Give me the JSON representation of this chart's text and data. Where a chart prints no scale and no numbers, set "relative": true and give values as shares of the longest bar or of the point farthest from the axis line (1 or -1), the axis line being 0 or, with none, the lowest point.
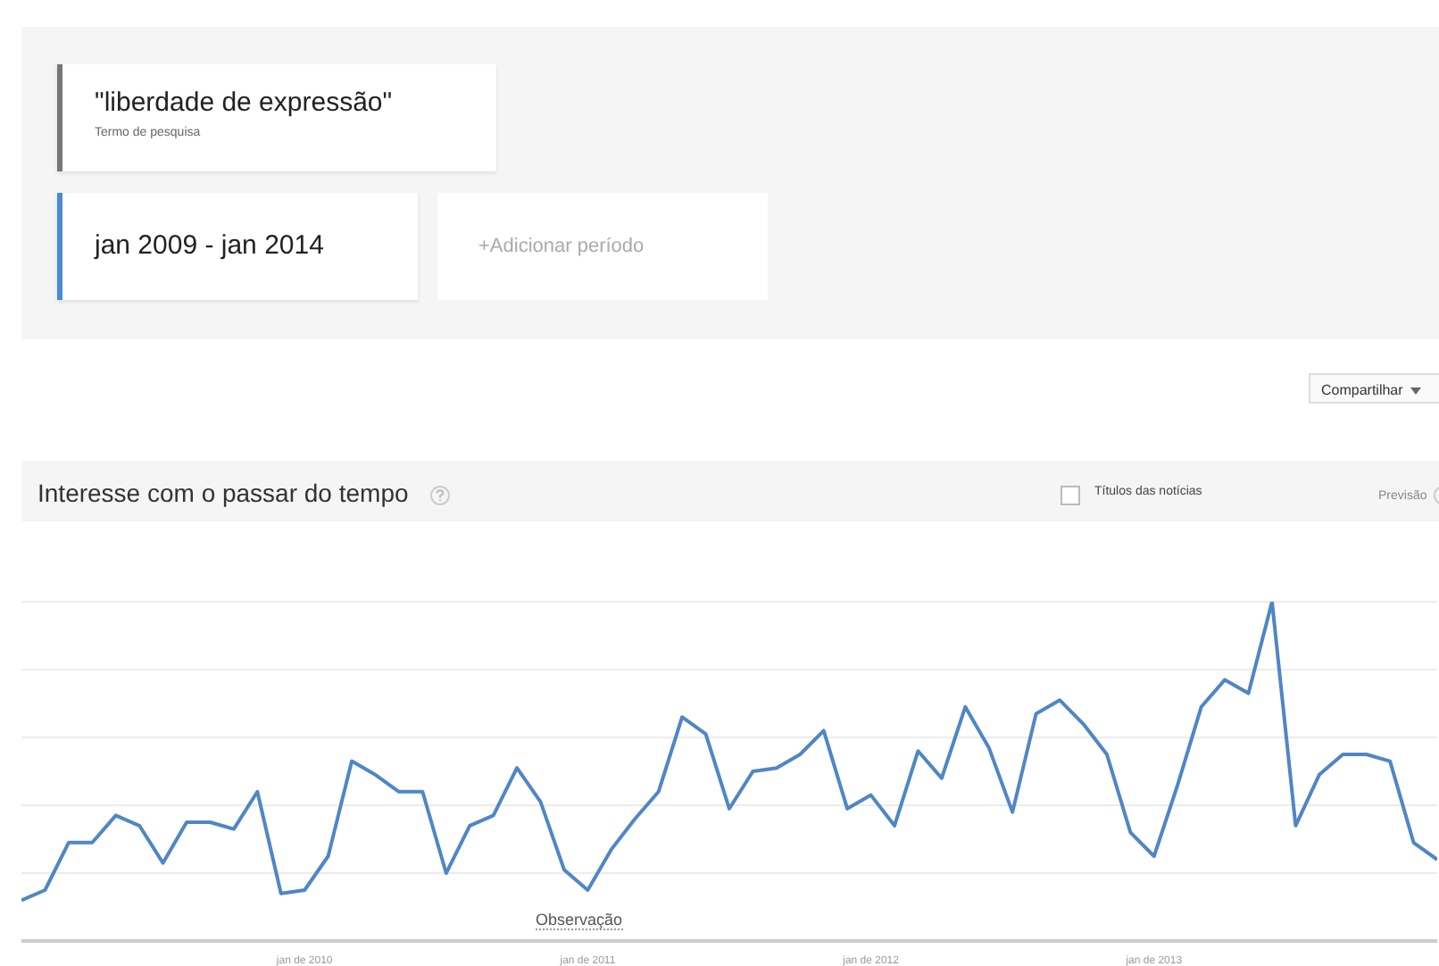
{
  "chart_data": {
    "type": "line",
    "title": "Interesse com o passar do tempo",
    "annotations": [
      "\"liberdade de expressão\"",
      "Termo de pesquisa",
      "jan 2009 - jan 2014",
      "+Adicionar período",
      "Compartilhar",
      "Títulos das notícias",
      "Previsão",
      "Observação"
    ],
    "relative": true,
    "grid": "y",
    "legend": false,
    "marker": "none",
    "line_style": "solid",
    "xlim": [
      "2009-01",
      "2014-01"
    ],
    "xticks": [
      {
        "value": "2010-01",
        "label": "jan de 2010"
      },
      {
        "value": "2011-01",
        "label": "jan de 2011"
      },
      {
        "value": "2012-01",
        "label": "jan de 2012"
      },
      {
        "value": "2013-01",
        "label": "jan de 2013"
      },
      {
        "value": "2014-01",
        "label": null
      }
    ],
    "x": [
      "2009-01",
      "2009-02",
      "2009-03",
      "2009-04",
      "2009-05",
      "2009-06",
      "2009-07",
      "2009-08",
      "2009-09",
      "2009-10",
      "2009-11",
      "2009-12",
      "2010-01",
      "2010-02",
      "2010-03",
      "2010-04",
      "2010-05",
      "2010-06",
      "2010-07",
      "2010-08",
      "2010-09",
      "2010-10",
      "2010-11",
      "2010-12",
      "2011-01",
      "2011-02",
      "2011-03",
      "2011-04",
      "2011-05",
      "2011-06",
      "2011-07",
      "2011-08",
      "2011-09",
      "2011-10",
      "2011-11",
      "2011-12",
      "2012-01",
      "2012-02",
      "2012-03",
      "2012-04",
      "2012-05",
      "2012-06",
      "2012-07",
      "2012-08",
      "2012-09",
      "2012-10",
      "2012-11",
      "2012-12",
      "2013-01",
      "2013-02",
      "2013-03",
      "2013-04",
      "2013-05",
      "2013-06",
      "2013-07",
      "2013-08",
      "2013-09",
      "2013-10",
      "2013-11",
      "2013-12",
      "2014-01"
    ],
    "series": [
      {
        "color": "#4f86c6",
        "values": [
          0.12,
          0.15,
          0.29,
          0.29,
          0.37,
          0.34,
          0.23,
          0.35,
          0.35,
          0.33,
          0.44,
          0.14,
          0.15,
          0.25,
          0.53,
          0.49,
          0.44,
          0.44,
          0.2,
          0.34,
          0.37,
          0.51,
          0.41,
          0.21,
          0.15,
          0.27,
          0.36,
          0.44,
          0.66,
          0.61,
          0.39,
          0.5,
          0.51,
          0.55,
          0.62,
          0.39,
          0.43,
          0.34,
          0.56,
          0.48,
          0.69,
          0.57,
          0.38,
          0.67,
          0.71,
          0.64,
          0.55,
          0.32,
          0.25,
          0.46,
          0.69,
          0.77,
          0.73,
          1,
          0.34,
          0.49,
          0.55,
          0.55,
          0.53,
          0.29,
          0.24
        ]
      }
    ]
  }
}
